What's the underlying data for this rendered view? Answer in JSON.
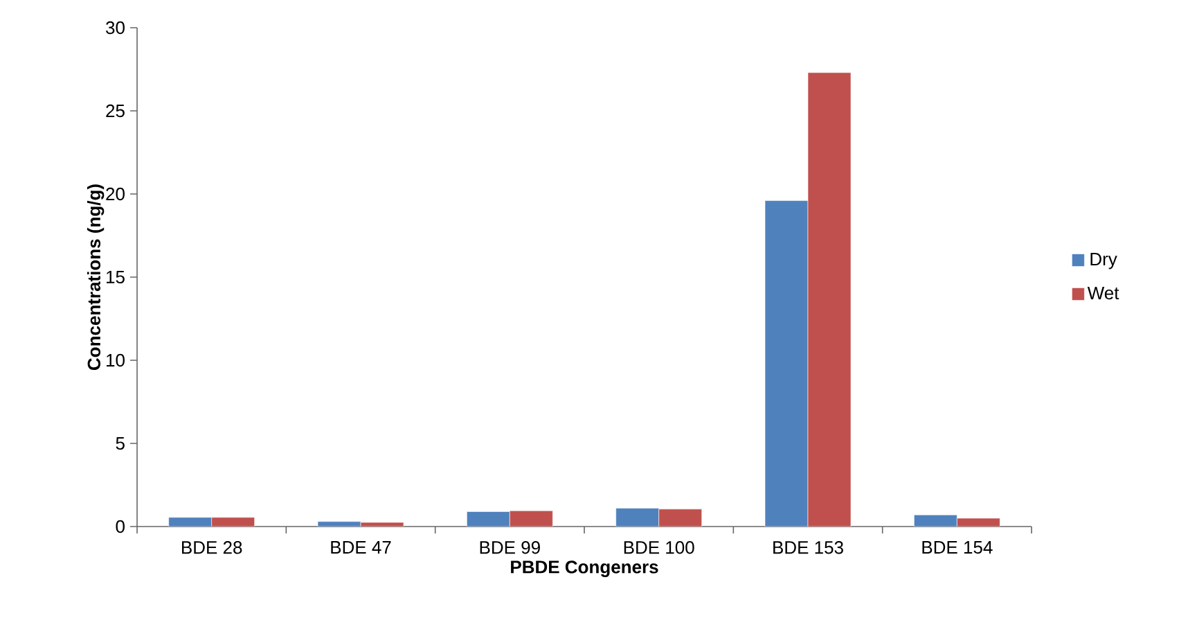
{
  "chart_data": {
    "type": "bar",
    "xlabel": "PBDE Congeners",
    "ylabel": "Concentrations (ng/g)",
    "categories": [
      "BDE 28",
      "BDE 47",
      "BDE 99",
      "BDE 100",
      "BDE 153",
      "BDE 154"
    ],
    "series": [
      {
        "name": "Dry",
        "color": "#4f81bd",
        "values": [
          0.55,
          0.3,
          0.9,
          1.1,
          19.6,
          0.7
        ]
      },
      {
        "name": "Wet",
        "color": "#c0504d",
        "values": [
          0.55,
          0.25,
          0.95,
          1.05,
          27.3,
          0.5
        ]
      }
    ],
    "ylim": [
      0,
      30
    ],
    "yticks": [
      0,
      5,
      10,
      15,
      20,
      25,
      30
    ],
    "grid": false,
    "legend": "right"
  }
}
